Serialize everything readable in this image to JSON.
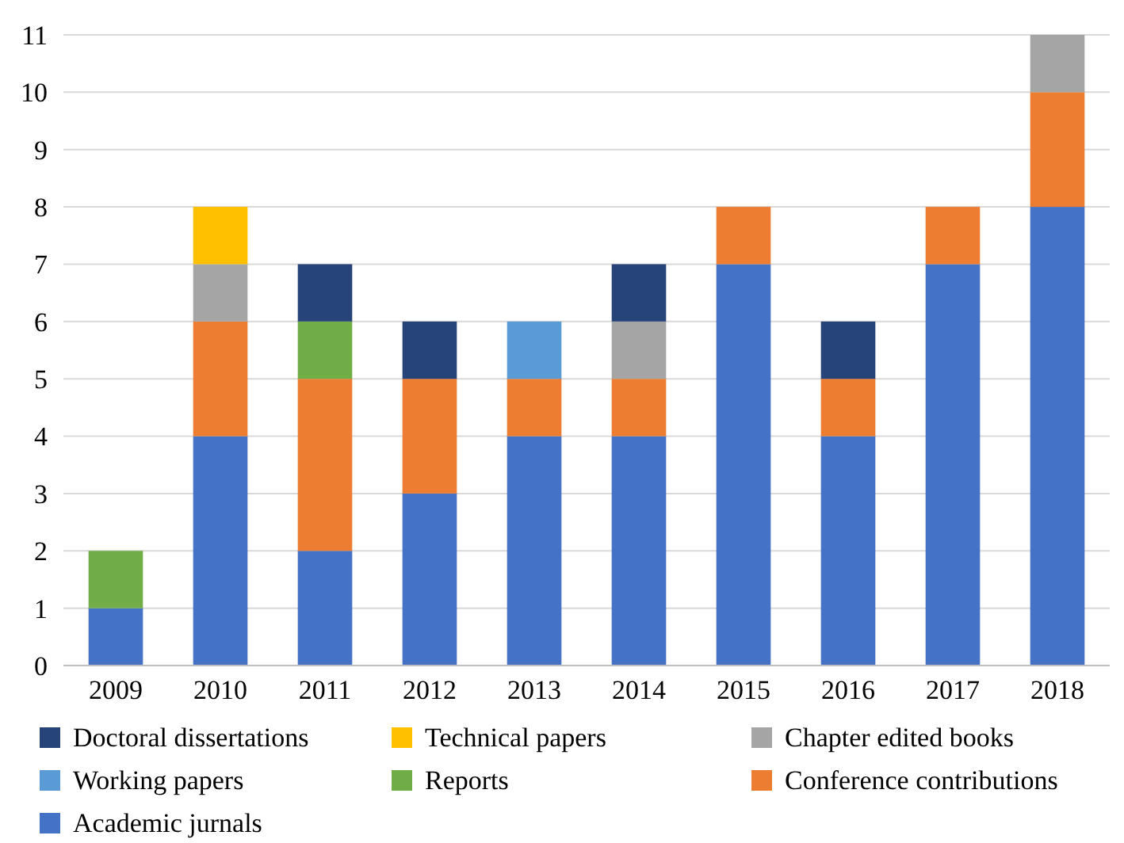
{
  "chart_data": {
    "type": "bar",
    "stacked": true,
    "categories": [
      "2009",
      "2010",
      "2011",
      "2012",
      "2013",
      "2014",
      "2015",
      "2016",
      "2017",
      "2018"
    ],
    "series": [
      {
        "name": "Academic jurnals",
        "color": "#4472c4",
        "values": [
          1,
          4,
          2,
          3,
          4,
          4,
          7,
          4,
          7,
          8
        ]
      },
      {
        "name": "Conference contributions",
        "color": "#ed7d31",
        "values": [
          null,
          2,
          3,
          2,
          1,
          1,
          1,
          1,
          1,
          2
        ]
      },
      {
        "name": "Reports",
        "color": "#70ad47",
        "values": [
          1,
          null,
          1,
          null,
          null,
          null,
          null,
          null,
          null,
          null
        ]
      },
      {
        "name": "Working papers",
        "color": "#5b9bd5",
        "values": [
          null,
          null,
          null,
          null,
          1,
          null,
          null,
          null,
          null,
          null
        ]
      },
      {
        "name": "Chapter edited books",
        "color": "#a5a5a5",
        "values": [
          null,
          1,
          null,
          null,
          null,
          1,
          null,
          null,
          null,
          1
        ]
      },
      {
        "name": "Technical papers",
        "color": "#ffc000",
        "values": [
          null,
          1,
          null,
          null,
          null,
          null,
          null,
          null,
          null,
          null
        ]
      },
      {
        "name": "Doctoral dissertations",
        "color": "#264478",
        "values": [
          null,
          null,
          1,
          1,
          null,
          1,
          null,
          1,
          null,
          null
        ]
      }
    ],
    "ylim": [
      0,
      11
    ],
    "yticks": [
      0,
      1,
      2,
      3,
      4,
      5,
      6,
      7,
      8,
      9,
      10,
      11
    ],
    "grid": "y",
    "legend": "bottom"
  }
}
